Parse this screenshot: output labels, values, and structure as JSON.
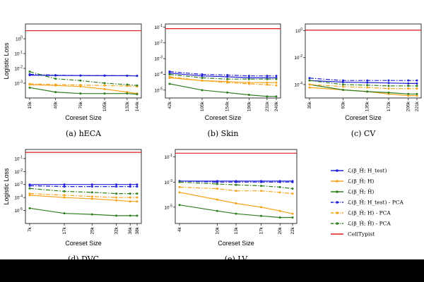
{
  "colors": {
    "blue": "#1f1fd6",
    "orange": "#f5a31a",
    "green": "#2e7d1f",
    "red": "#e31a1c"
  },
  "legend": [
    {
      "label": "ℒ(β_Ĥ; H_test)",
      "color": "blue",
      "style": "solid"
    },
    {
      "label": "ℒ(β_Ĥ; H)",
      "color": "orange",
      "style": "solid"
    },
    {
      "label": "ℒ(β_Ĥ; H̃)",
      "color": "green",
      "style": "solid"
    },
    {
      "label": "ℒ(β_Ĥ; H_test) - PCA",
      "color": "blue",
      "style": "dashdot"
    },
    {
      "label": "ℒ(β_Ĥ; H) - PCA",
      "color": "orange",
      "style": "dashdot"
    },
    {
      "label": "ℒ(β_Ĥ; H̃) - PCA",
      "color": "green",
      "style": "dashdot"
    },
    {
      "label": "CellTypist",
      "color": "red",
      "style": "solid"
    }
  ],
  "chart_data": [
    {
      "type": "line",
      "caption": "(a) hECA",
      "xlabel": "Coreset Size",
      "ylabel": "Logistic Loss",
      "x": [
        15,
        46,
        76,
        105,
        132,
        144
      ],
      "xticklabels": [
        "15k",
        "46k",
        "76k",
        "105k",
        "132k",
        "144k"
      ],
      "ylog": [
        -4,
        1
      ],
      "yticks": [
        -3,
        -2,
        -1,
        0
      ],
      "ylabel_pos": [
        {
          "exp": -3,
          "label": "10^-3"
        },
        {
          "exp": -2,
          "label": "10^-2"
        },
        {
          "exp": -1,
          "label": "10^-1"
        },
        {
          "exp": 0,
          "label": "10^0"
        }
      ],
      "celltypist": 3.5,
      "series": [
        {
          "name": "test",
          "color": "blue",
          "style": "solid",
          "values": [
            0.0035,
            0.0033,
            0.0033,
            0.0032,
            0.0032,
            0.0031
          ]
        },
        {
          "name": "train",
          "color": "orange",
          "style": "solid",
          "values": [
            0.0008,
            0.0007,
            0.0006,
            0.0004,
            0.00025,
            0.0002
          ]
        },
        {
          "name": "coreset",
          "color": "green",
          "style": "solid",
          "values": [
            0.0005,
            0.00025,
            0.0002,
            0.0002,
            0.0002,
            0.00018
          ]
        },
        {
          "name": "test-pca",
          "color": "blue",
          "style": "dashdot",
          "values": [
            0.004,
            0.0035,
            0.0033,
            0.0033,
            0.0032,
            0.0031
          ]
        },
        {
          "name": "train-pca",
          "color": "orange",
          "style": "dashdot",
          "values": [
            0.0009,
            0.0008,
            0.00075,
            0.0007,
            0.00065,
            0.0006
          ]
        },
        {
          "name": "coreset-pca",
          "color": "green",
          "style": "dashdot",
          "values": [
            0.006,
            0.002,
            0.0015,
            0.001,
            0.0008,
            0.0007
          ]
        }
      ]
    },
    {
      "type": "line",
      "caption": "(b) Skin",
      "xlabel": "Coreset Size",
      "ylabel": "",
      "x": [
        42,
        105,
        154,
        196,
        231,
        249
      ],
      "xticklabels": [
        "42k",
        "105k",
        "154k",
        "196k",
        "231k",
        "249k"
      ],
      "ylog": [
        -5.5,
        -0.8
      ],
      "yticks": [
        -5,
        -4,
        -3,
        -2,
        -1
      ],
      "ylabel_pos": [
        {
          "exp": -5,
          "label": "10^-5"
        },
        {
          "exp": -4,
          "label": "10^-4"
        },
        {
          "exp": -3,
          "label": "10^-3"
        },
        {
          "exp": -2,
          "label": "10^-2"
        },
        {
          "exp": -1,
          "label": "10^-1"
        }
      ],
      "celltypist": 0.08,
      "series": [
        {
          "name": "test",
          "color": "blue",
          "style": "solid",
          "values": [
            0.00012,
            8e-05,
            7e-05,
            6e-05,
            6e-05,
            6e-05
          ]
        },
        {
          "name": "train",
          "color": "orange",
          "style": "solid",
          "values": [
            6e-05,
            4e-05,
            3.5e-05,
            3e-05,
            3e-05,
            3e-05
          ]
        },
        {
          "name": "coreset",
          "color": "green",
          "style": "solid",
          "values": [
            2.5e-05,
            1e-05,
            7e-06,
            5e-06,
            4e-06,
            4e-06
          ]
        },
        {
          "name": "test-pca",
          "color": "blue",
          "style": "dashdot",
          "values": [
            0.00015,
            0.0001,
            9e-05,
            8e-05,
            8e-05,
            8e-05
          ]
        },
        {
          "name": "train-pca",
          "color": "orange",
          "style": "dashdot",
          "values": [
            7e-05,
            4e-05,
            3e-05,
            2.5e-05,
            2.2e-05,
            2e-05
          ]
        },
        {
          "name": "coreset-pca",
          "color": "green",
          "style": "dashdot",
          "values": [
            0.0001,
            6e-05,
            5e-05,
            5e-05,
            5e-05,
            5e-05
          ]
        }
      ]
    },
    {
      "type": "line",
      "caption": "(c) CV",
      "xlabel": "Coreset Size",
      "ylabel": "",
      "x": [
        35,
        93,
        135,
        172,
        206,
        221
      ],
      "xticklabels": [
        "35k",
        "93k",
        "135k",
        "172k",
        "206k",
        "221k"
      ],
      "ylog": [
        -5,
        0.5
      ],
      "yticks": [
        -4,
        -2,
        0
      ],
      "ylabel_pos": [
        {
          "exp": -4,
          "label": "10^-4"
        },
        {
          "exp": -2,
          "label": "10^-2"
        },
        {
          "exp": 0,
          "label": "10^0"
        }
      ],
      "celltypist": 1.1,
      "series": [
        {
          "name": "test",
          "color": "blue",
          "style": "solid",
          "values": [
            0.0002,
            0.00015,
            0.00014,
            0.00013,
            0.00012,
            0.00012
          ]
        },
        {
          "name": "train",
          "color": "orange",
          "style": "solid",
          "values": [
            6e-05,
            4e-05,
            3e-05,
            2e-05,
            1.5e-05,
            1.5e-05
          ]
        },
        {
          "name": "coreset",
          "color": "green",
          "style": "solid",
          "values": [
            0.0001,
            4e-05,
            3e-05,
            2.5e-05,
            2e-05,
            2e-05
          ]
        },
        {
          "name": "test-pca",
          "color": "blue",
          "style": "dashdot",
          "values": [
            0.0003,
            0.0002,
            0.0002,
            0.0002,
            0.0002,
            0.0002
          ]
        },
        {
          "name": "train-pca",
          "color": "orange",
          "style": "dashdot",
          "values": [
            0.0001,
            7e-05,
            6e-05,
            5e-05,
            5e-05,
            5e-05
          ]
        },
        {
          "name": "coreset-pca",
          "color": "green",
          "style": "dashdot",
          "values": [
            0.0002,
            0.0001,
            9e-05,
            8e-05,
            8e-05,
            8e-05
          ]
        }
      ]
    },
    {
      "type": "line",
      "caption": "(d) DVC",
      "xlabel": "Coreset Size",
      "ylabel": "Logistic Loss",
      "x": [
        7,
        17,
        25,
        32,
        36,
        38
      ],
      "xticklabels": [
        "7k",
        "17k",
        "25k",
        "32k",
        "36k",
        "38k"
      ],
      "ylog": [
        -6,
        -0.3
      ],
      "yticks": [
        -5,
        -4,
        -3,
        -2,
        -1
      ],
      "ylabel_pos": [
        {
          "exp": -5,
          "label": "10^-5"
        },
        {
          "exp": -4,
          "label": "10^-4"
        },
        {
          "exp": -3,
          "label": "10^-3"
        },
        {
          "exp": -2,
          "label": "10^-2"
        },
        {
          "exp": -1,
          "label": "10^-1"
        }
      ],
      "celltypist": 0.3,
      "series": [
        {
          "name": "test",
          "color": "blue",
          "style": "solid",
          "values": [
            0.001,
            0.001,
            0.001,
            0.001,
            0.001,
            0.001
          ]
        },
        {
          "name": "train",
          "color": "orange",
          "style": "solid",
          "values": [
            0.00015,
            0.0001,
            8e-05,
            6e-05,
            5e-05,
            5e-05
          ]
        },
        {
          "name": "coreset",
          "color": "green",
          "style": "solid",
          "values": [
            1.5e-05,
            6e-06,
            5e-06,
            4e-06,
            4e-06,
            4e-06
          ]
        },
        {
          "name": "test-pca",
          "color": "blue",
          "style": "dashdot",
          "values": [
            0.0008,
            0.0007,
            0.0007,
            0.0007,
            0.0007,
            0.0007
          ]
        },
        {
          "name": "train-pca",
          "color": "orange",
          "style": "dashdot",
          "values": [
            0.0002,
            0.00015,
            0.00012,
            0.0001,
            0.0001,
            0.0001
          ]
        },
        {
          "name": "coreset-pca",
          "color": "green",
          "style": "dashdot",
          "values": [
            0.0005,
            0.0003,
            0.00025,
            0.0002,
            0.0002,
            0.0002
          ]
        }
      ]
    },
    {
      "type": "line",
      "caption": "(e) LV",
      "xlabel": "Coreset Size",
      "ylabel": "",
      "x": [
        4,
        10,
        13,
        17,
        20,
        22
      ],
      "xticklabels": [
        "4k",
        "10k",
        "13k",
        "17k",
        "20k",
        "22k"
      ],
      "ylog": [
        -6.3,
        -0.4
      ],
      "yticks": [
        -5,
        -3,
        -1
      ],
      "ylabel_pos": [
        {
          "exp": -5,
          "label": "10^-5"
        },
        {
          "exp": -3,
          "label": "10^-3"
        },
        {
          "exp": -1,
          "label": "10^-1"
        }
      ],
      "celltypist": 0.2,
      "series": [
        {
          "name": "test",
          "color": "blue",
          "style": "solid",
          "values": [
            0.0012,
            0.0012,
            0.0012,
            0.0012,
            0.0012,
            0.0012
          ]
        },
        {
          "name": "train",
          "color": "orange",
          "style": "solid",
          "values": [
            0.00015,
            4e-05,
            2e-05,
            1e-05,
            5e-06,
            3e-06
          ]
        },
        {
          "name": "coreset",
          "color": "green",
          "style": "solid",
          "values": [
            1.5e-05,
            5e-06,
            3e-06,
            2e-06,
            1.5e-06,
            1.5e-06
          ]
        },
        {
          "name": "test-pca",
          "color": "blue",
          "style": "dashdot",
          "values": [
            0.0012,
            0.001,
            0.001,
            0.001,
            0.001,
            0.001
          ]
        },
        {
          "name": "train-pca",
          "color": "orange",
          "style": "dashdot",
          "values": [
            0.0004,
            0.0003,
            0.0002,
            0.0002,
            0.00015,
            0.00012
          ]
        },
        {
          "name": "coreset-pca",
          "color": "green",
          "style": "dashdot",
          "values": [
            0.001,
            0.0007,
            0.0006,
            0.0005,
            0.0004,
            0.0003
          ]
        }
      ]
    }
  ]
}
